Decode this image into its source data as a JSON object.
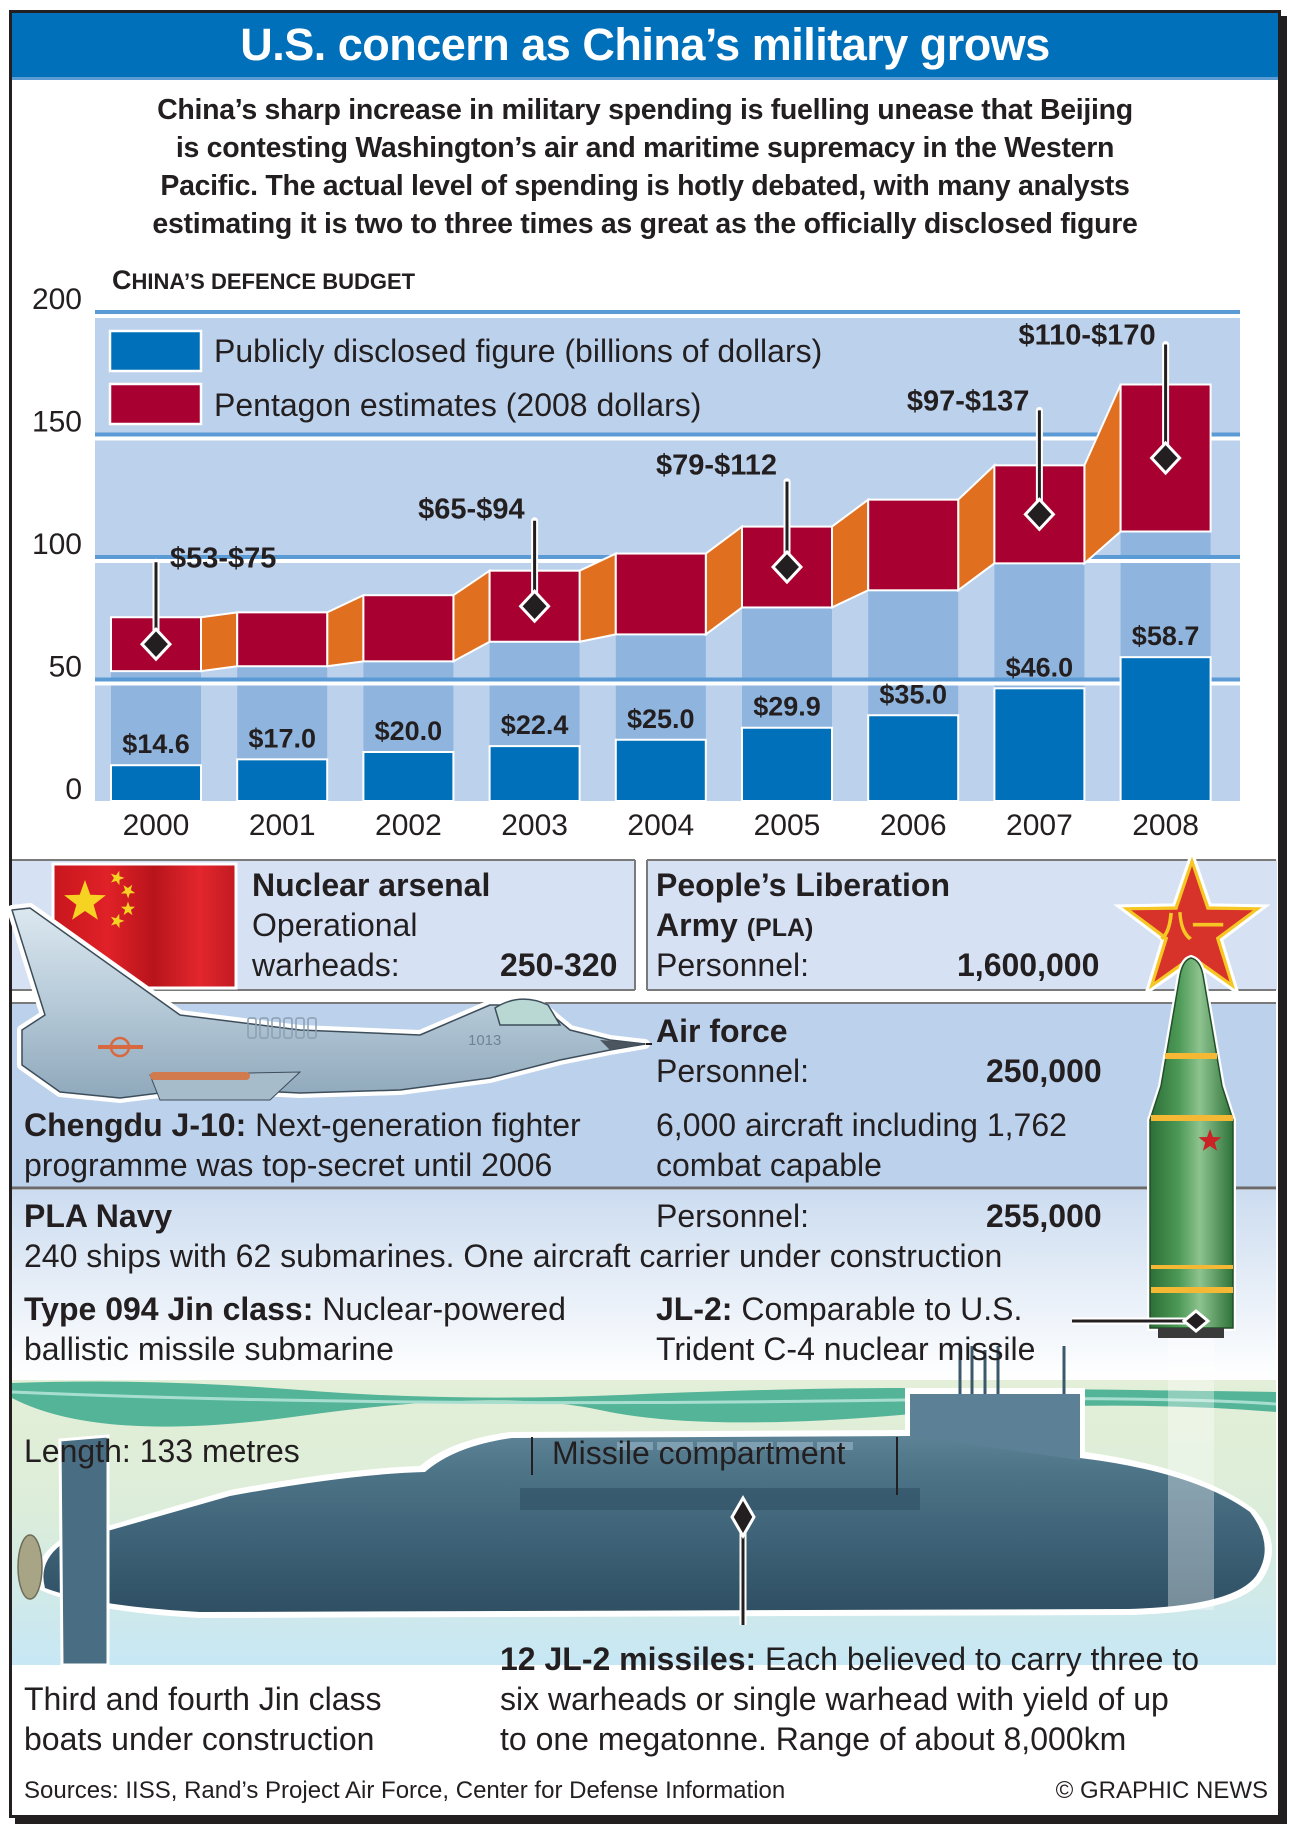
{
  "header": {
    "title": "U.S. concern as China’s military grows"
  },
  "intro": {
    "lines": [
      "China’s sharp increase in military spending is fuelling unease that Beijing",
      "is contesting Washington’s air and maritime supremacy in the Western",
      "Pacific. The actual level of spending is hotly debated, with many analysts",
      "estimating it is two to three times as great as the officially disclosed figure"
    ]
  },
  "chart_data": {
    "type": "bar",
    "title": "China’s defence budget",
    "title_cap": "C",
    "title_rest": "HINA’S DEFENCE BUDGET",
    "categories": [
      "2000",
      "2001",
      "2002",
      "2003",
      "2004",
      "2005",
      "2006",
      "2007",
      "2008"
    ],
    "ylim": [
      0,
      200
    ],
    "yticks": [
      "0",
      "50",
      "100",
      "150",
      "200"
    ],
    "yticks_values": [
      0,
      50,
      100,
      150,
      200
    ],
    "grid": true,
    "legend_position": "top-left",
    "series": [
      {
        "name": "Publicly disclosed figure (billions of dollars)",
        "color": "#0070ba",
        "values": [
          14.6,
          17.0,
          20.0,
          22.4,
          25.0,
          29.9,
          35.0,
          46.0,
          58.7
        ],
        "labels": [
          "$14.6",
          "$17.0",
          "$20.0",
          "$22.4",
          "$25.0",
          "$29.9",
          "$35.0",
          "$46.0",
          "$58.7"
        ]
      },
      {
        "name": "Pentagon estimates (2008 dollars)",
        "color": "#a80030",
        "low": [
          53,
          55,
          57,
          65,
          68,
          79,
          86,
          97,
          110
        ],
        "high": [
          75,
          77,
          84,
          94,
          101,
          112,
          123,
          137,
          170
        ],
        "range_labels": [
          "$53-$75",
          null,
          null,
          "$65-$94",
          null,
          "$79-$112",
          null,
          "$97-$137",
          "$110-$170"
        ]
      }
    ],
    "connector_color": "#e07020",
    "plot_bg": "#bcd1eb",
    "column_bg": "#8fb5de"
  },
  "nuclear": {
    "title": "Nuclear arsenal",
    "line1": "Operational",
    "label": "warheads:",
    "value": "250-320"
  },
  "army": {
    "title1": "People’s Liberation",
    "title2": "Army",
    "abbr": "(PLA)",
    "label": "Personnel:",
    "value": "1,600,000"
  },
  "airforce": {
    "title": "Air force",
    "label": "Personnel:",
    "value": "250,000",
    "line1": "6,000 aircraft including 1,762",
    "line2": "combat capable"
  },
  "j10": {
    "bold": "Chengdu J-10:",
    "line1": " Next-generation fighter",
    "line2": "programme was top-secret until 2006",
    "tail_number": "1013"
  },
  "navy": {
    "title": "PLA Navy",
    "label": "Personnel:",
    "value": "255,000",
    "line1": "240 ships with 62 submarines. One aircraft carrier under construction"
  },
  "jin": {
    "bold": "Type 094 Jin class:",
    "line1": " Nuclear-powered",
    "line2": "ballistic missile submarine"
  },
  "jl2": {
    "bold": "JL-2:",
    "line1": " Comparable to U.S.",
    "line2": "Trident C-4 nuclear missile"
  },
  "sub": {
    "length": "Length: 133 metres",
    "compartment": "Missile compartment",
    "construction1": "Third and fourth Jin class",
    "construction2": "boats under construction",
    "missiles_bold": "12 JL-2 missiles:",
    "missiles1": " Each believed to carry three to",
    "missiles2": "six warheads or single warhead with yield of up",
    "missiles3": "to one megatonne. Range of about 8,000km"
  },
  "emblem": {
    "characters": "八一"
  },
  "footer": {
    "sources": "Sources: IISS, Rand’s Project Air Force, Center for Defense Information",
    "credit": "© GRAPHIC NEWS"
  },
  "colors": {
    "brand_blue": "#0070ba",
    "pentagon_red": "#a80030",
    "connector_orange": "#e07020",
    "panel_light": "#d6e2f3",
    "panel_mid": "#bcd1eb",
    "missile_green": "#3f8a4a",
    "star_red": "#d7332a",
    "star_yellow": "#f6c724"
  }
}
